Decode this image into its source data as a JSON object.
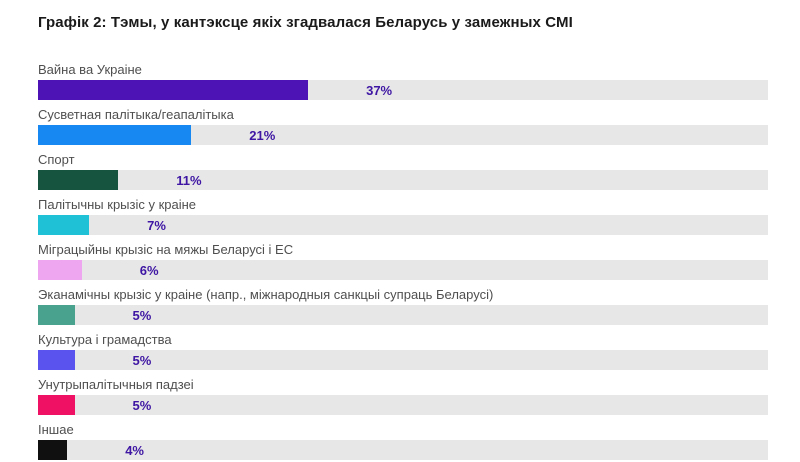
{
  "page": {
    "title": "Графік 2: Тэмы, у кантэксце якіх згадвалася Беларусь у замежных СМІ"
  },
  "colors": {
    "title_text": "#1a1a1a",
    "label_text": "#4f4f4f",
    "value_text": "#3e16a3",
    "track": "#e7e7e7",
    "background": "#ffffff"
  },
  "chart_data": {
    "type": "bar",
    "orientation": "horizontal",
    "title": "Графік 2: Тэмы, у кантэксце якіх згадвалася Беларусь у замежных СМІ",
    "unit": "%",
    "xlim": [
      0,
      100
    ],
    "grid": false,
    "legend": false,
    "value_labels_visible": true,
    "categories": [
      "Вайна ва Украіне",
      "Сусветная палітыка/геапалітыка",
      "Спорт",
      "Палітычны крызіс у краіне",
      "Міграцыйны крызіс на мяжы Беларусі і ЕС",
      "Эканамічны крызіс у краіне (напр., міжнародныя санкцыі супраць Беларусі)",
      "Культура і грамадства",
      "Унутрыпалітычныя падзеі",
      "Іншае"
    ],
    "values": [
      37,
      21,
      11,
      7,
      6,
      5,
      5,
      5,
      4
    ],
    "bar_colors": [
      "#4e13b5",
      "#1787f2",
      "#175440",
      "#1fc1d6",
      "#efa6f0",
      "#49a28d",
      "#5b53ee",
      "#ef1164",
      "#101010"
    ]
  }
}
